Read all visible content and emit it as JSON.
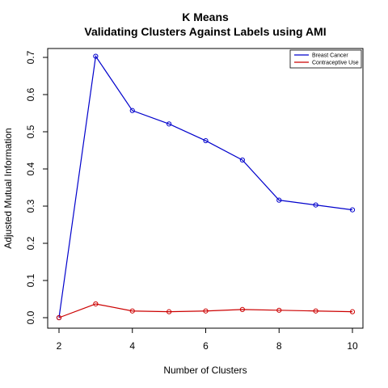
{
  "chart_data": {
    "type": "line",
    "title": "K Means",
    "subtitle": "Validating Clusters Against Labels using AMI",
    "xlabel": "Number of Clusters",
    "ylabel": "Adjusted Mutual Information",
    "x": [
      2,
      3,
      4,
      5,
      6,
      7,
      8,
      9,
      10
    ],
    "xlim": [
      2,
      10
    ],
    "ylim": [
      0,
      0.7
    ],
    "xticks": [
      2,
      4,
      6,
      8,
      10
    ],
    "yticks": [
      0.0,
      0.1,
      0.2,
      0.3,
      0.4,
      0.5,
      0.6,
      0.7
    ],
    "xtick_labels": [
      "2",
      "4",
      "6",
      "8",
      "10"
    ],
    "ytick_labels": [
      "0.0",
      "0.1",
      "0.2",
      "0.3",
      "0.4",
      "0.5",
      "0.6",
      "0.7"
    ],
    "grid": false,
    "legend_position": "top-right",
    "series": [
      {
        "name": "Breast Cancer",
        "color": "#0000cc",
        "values": [
          0.0,
          0.703,
          0.557,
          0.521,
          0.476,
          0.424,
          0.316,
          0.303,
          0.29
        ]
      },
      {
        "name": "Contraceptive Use",
        "color": "#cc0000",
        "values": [
          0.0,
          0.037,
          0.018,
          0.016,
          0.018,
          0.022,
          0.02,
          0.018,
          0.016
        ]
      }
    ]
  }
}
